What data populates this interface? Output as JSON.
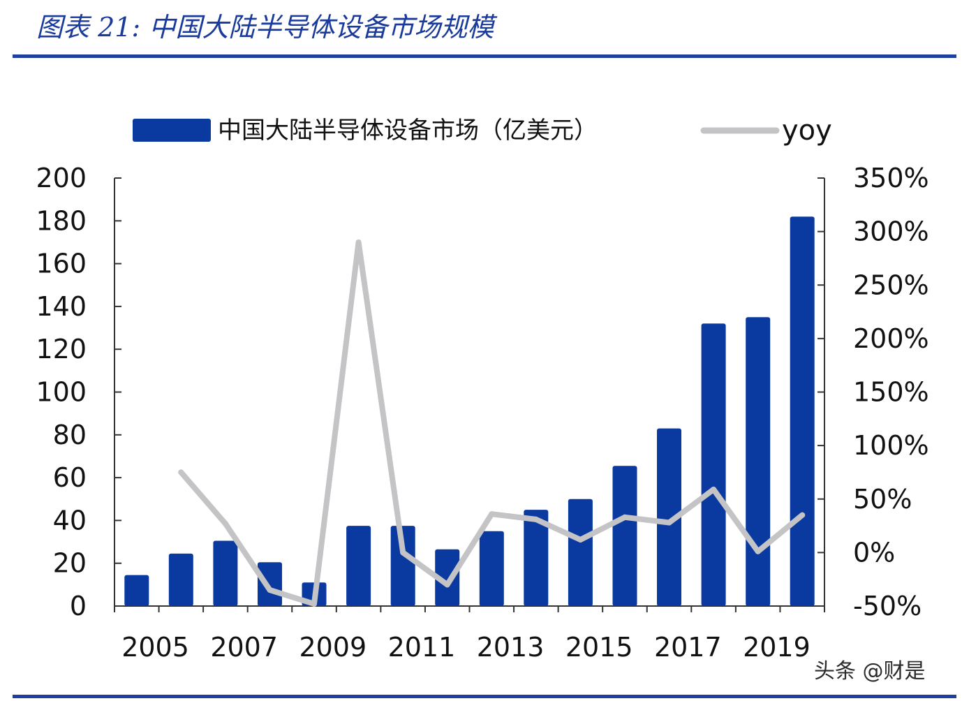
{
  "figure_title": "图表 21:  中国大陆半导体设备市场规模",
  "watermark": "头条 @财是",
  "colors": {
    "bar": "#0a3aa0",
    "line": "#c4c4c6",
    "rule": "#1e3fa0",
    "title": "#1a3b9c"
  },
  "chart_data": {
    "type": "bar",
    "title": "",
    "categories": [
      "2005",
      "2006",
      "2007",
      "2008",
      "2009",
      "2010",
      "2011",
      "2012",
      "2013",
      "2014",
      "2015",
      "2016",
      "2017",
      "2018",
      "2019",
      "2020"
    ],
    "x_tick_labels": [
      "2005",
      "2007",
      "2009",
      "2011",
      "2013",
      "2015",
      "2017",
      "2019"
    ],
    "series": [
      {
        "name": "中国大陆半导体设备市场（亿美元）",
        "type": "bar",
        "axis": "left",
        "values": [
          14.5,
          24.5,
          30.5,
          20.5,
          11,
          37.5,
          37.5,
          26.5,
          35,
          45,
          50,
          65.5,
          83,
          132,
          135,
          182
        ]
      },
      {
        "name": "yoy",
        "type": "line",
        "axis": "right",
        "values": [
          null,
          75,
          27,
          -35,
          -48,
          290,
          0,
          -30,
          36,
          31,
          12,
          33,
          28,
          59,
          1,
          35
        ]
      }
    ],
    "y_left": {
      "range": [
        0,
        200
      ],
      "ticks": [
        "0",
        "20",
        "40",
        "60",
        "80",
        "100",
        "120",
        "140",
        "160",
        "180",
        "200"
      ]
    },
    "y_right": {
      "range": [
        -50,
        350
      ],
      "ticks": [
        "-50%",
        "0%",
        "50%",
        "100%",
        "150%",
        "200%",
        "250%",
        "300%",
        "350%"
      ]
    },
    "legend": "top",
    "grid": false
  }
}
